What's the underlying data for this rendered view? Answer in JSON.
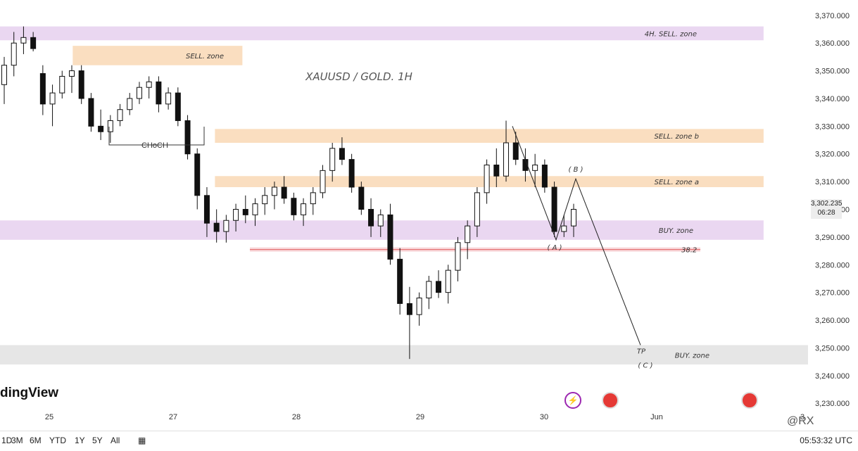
{
  "chart_data": {
    "type": "candlestick",
    "title": "XAUUSD / GOLD. 1H",
    "ylim": [
      3227,
      3373
    ],
    "y_ticks": [
      "3,230.000",
      "3,240.000",
      "3,250.000",
      "3,260.000",
      "3,270.000",
      "3,280.000",
      "3,290.000",
      "3,300.000",
      "3,310.000",
      "3,320.000",
      "3,330.000",
      "3,340.000",
      "3,350.000",
      "3,360.000",
      "3,370.000"
    ],
    "x_ticks": [
      "25",
      "27",
      "28",
      "29",
      "30",
      "Jun",
      "3"
    ],
    "current_price": "3,302.235",
    "countdown": "06:28",
    "zones": [
      {
        "label": "4H. SELL. zone",
        "top": 3366,
        "bottom": 3361,
        "x_start": 0.0,
        "x_end": 0.945,
        "color": "#ead7f1"
      },
      {
        "label": "SELL. zone",
        "top": 3359,
        "bottom": 3352,
        "x_start": 0.09,
        "x_end": 0.3,
        "color": "#fadec0"
      },
      {
        "label": "SELL. zone b",
        "top": 3329,
        "bottom": 3324,
        "x_start": 0.266,
        "x_end": 0.945,
        "color": "#fadec0"
      },
      {
        "label": "SELL. zone a",
        "top": 3312,
        "bottom": 3308,
        "x_start": 0.266,
        "x_end": 0.945,
        "color": "#fadec0"
      },
      {
        "label": "BUY. zone",
        "top": 3296,
        "bottom": 3289,
        "x_start": 0.0,
        "x_end": 0.945,
        "color": "#ead7f1"
      },
      {
        "label": "BUY. zone",
        "top": 3251,
        "bottom": 3244,
        "x_start": 0.0,
        "x_end": 1.0,
        "color": "#e6e6e6"
      }
    ],
    "fib_level": {
      "label": "38.2",
      "price": 3285.5
    },
    "annotations": {
      "choch": "CHoCH",
      "wave_a": "( A )",
      "wave_b": "( B )",
      "wave_c": "( C )",
      "tp": "TP"
    },
    "candles": [
      [
        3345,
        3355,
        3338,
        3352
      ],
      [
        3352,
        3364,
        3348,
        3360
      ],
      [
        3360,
        3366,
        3356,
        3362
      ],
      [
        3362,
        3364,
        3357,
        3358
      ],
      [
        3349,
        3352,
        3334,
        3338
      ],
      [
        3338,
        3345,
        3330,
        3342
      ],
      [
        3342,
        3350,
        3340,
        3348
      ],
      [
        3348,
        3352,
        3342,
        3350
      ],
      [
        3350,
        3352,
        3338,
        3340
      ],
      [
        3340,
        3342,
        3328,
        3330
      ],
      [
        3330,
        3336,
        3325,
        3328
      ],
      [
        3328,
        3334,
        3324,
        3332
      ],
      [
        3332,
        3338,
        3330,
        3336
      ],
      [
        3336,
        3342,
        3334,
        3340
      ],
      [
        3340,
        3346,
        3338,
        3344
      ],
      [
        3344,
        3348,
        3340,
        3346
      ],
      [
        3346,
        3348,
        3335,
        3338
      ],
      [
        3338,
        3344,
        3336,
        3342
      ],
      [
        3342,
        3344,
        3330,
        3332
      ],
      [
        3332,
        3334,
        3318,
        3320
      ],
      [
        3320,
        3322,
        3300,
        3305
      ],
      [
        3305,
        3308,
        3290,
        3295
      ],
      [
        3295,
        3300,
        3288,
        3292
      ],
      [
        3292,
        3298,
        3288,
        3296
      ],
      [
        3296,
        3302,
        3292,
        3300
      ],
      [
        3300,
        3305,
        3295,
        3298
      ],
      [
        3298,
        3304,
        3294,
        3302
      ],
      [
        3302,
        3308,
        3298,
        3305
      ],
      [
        3305,
        3310,
        3300,
        3308
      ],
      [
        3308,
        3312,
        3302,
        3304
      ],
      [
        3304,
        3306,
        3296,
        3298
      ],
      [
        3298,
        3304,
        3294,
        3302
      ],
      [
        3302,
        3308,
        3298,
        3306
      ],
      [
        3306,
        3316,
        3304,
        3314
      ],
      [
        3314,
        3324,
        3310,
        3322
      ],
      [
        3322,
        3326,
        3316,
        3318
      ],
      [
        3318,
        3320,
        3306,
        3308
      ],
      [
        3308,
        3310,
        3298,
        3300
      ],
      [
        3300,
        3304,
        3290,
        3294
      ],
      [
        3294,
        3300,
        3290,
        3298
      ],
      [
        3298,
        3302,
        3280,
        3282
      ],
      [
        3282,
        3286,
        3262,
        3266
      ],
      [
        3266,
        3272,
        3246,
        3262
      ],
      [
        3262,
        3270,
        3258,
        3268
      ],
      [
        3268,
        3276,
        3264,
        3274
      ],
      [
        3274,
        3278,
        3268,
        3270
      ],
      [
        3270,
        3280,
        3266,
        3278
      ],
      [
        3278,
        3290,
        3274,
        3288
      ],
      [
        3288,
        3296,
        3282,
        3294
      ],
      [
        3294,
        3308,
        3290,
        3306
      ],
      [
        3306,
        3318,
        3302,
        3316
      ],
      [
        3316,
        3322,
        3308,
        3312
      ],
      [
        3312,
        3332,
        3310,
        3324
      ],
      [
        3324,
        3328,
        3316,
        3318
      ],
      [
        3318,
        3322,
        3310,
        3314
      ],
      [
        3314,
        3320,
        3308,
        3316
      ],
      [
        3316,
        3318,
        3306,
        3308
      ],
      [
        3308,
        3310,
        3290,
        3292
      ],
      [
        3292,
        3298,
        3290,
        3294
      ],
      [
        3294,
        3302,
        3290,
        3300
      ]
    ]
  },
  "chart_texts": {
    "zone_4h": "4H. SELL. zone",
    "zone_sell": "SELL. zone",
    "zone_b": "SELL. zone b",
    "zone_a": "SELL. zone a",
    "zone_buy1": "BUY. zone",
    "zone_buy2": "BUY. zone",
    "fib": "38.2",
    "choch": "CHoCH",
    "wave_a": "( A )",
    "wave_b": "( B )",
    "wave_c": "( C )",
    "tp": "TP"
  },
  "branding": {
    "logo": "dingView",
    "watermark": "@RX"
  },
  "toolbar": {
    "timeframes": [
      "3M",
      "6M",
      "YTD",
      "1Y",
      "5Y",
      "All"
    ],
    "first": "1D",
    "utc": "05:53:32 UTC"
  },
  "colors": {
    "up": "#ffffff",
    "down": "#111111",
    "wick": "#111111",
    "fib": "#e57373"
  }
}
